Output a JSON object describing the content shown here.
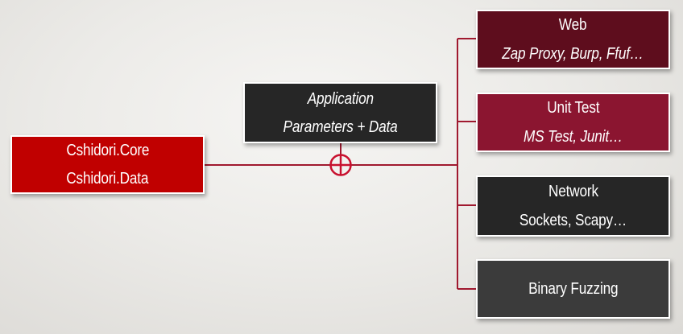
{
  "colors": {
    "connector": "#a0192f",
    "core_fill": "#c00000",
    "application_fill": "#262626",
    "web_fill": "#5e0d1d",
    "unit_test_fill": "#8b1530",
    "network_fill": "#262626",
    "binary_fuzzing_fill": "#3b3b3b"
  },
  "core": {
    "line1": "Cshidori.Core",
    "line2": "Cshidori.Data"
  },
  "application": {
    "line1": "Application",
    "line2": "Parameters + Data"
  },
  "targets": {
    "web": {
      "title": "Web",
      "tools": "Zap Proxy, Burp, Ffuf…"
    },
    "unit_test": {
      "title": "Unit Test",
      "tools": "MS Test, Junit…"
    },
    "network": {
      "title": "Network",
      "tools": "Sockets, Scapy…"
    },
    "binary_fuzzing": {
      "title": "Binary Fuzzing"
    }
  },
  "icons": {
    "junction": "circle-plus-icon"
  }
}
